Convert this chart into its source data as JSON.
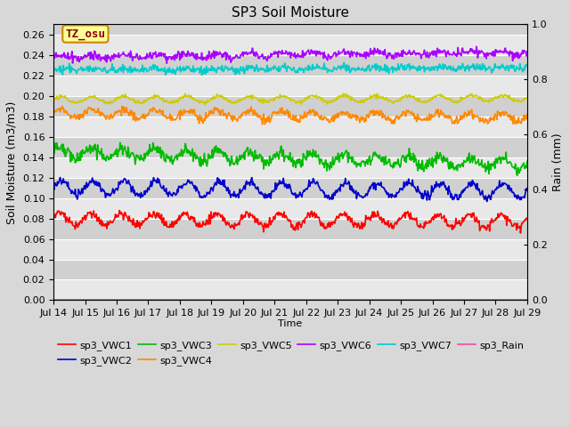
{
  "title": "SP3 Soil Moisture",
  "xlabel": "Time",
  "ylabel_left": "Soil Moisture (m3/m3)",
  "ylabel_right": "Rain (mm)",
  "ylim_left": [
    0.0,
    0.27
  ],
  "ylim_right": [
    0.0,
    1.0
  ],
  "xtick_labels": [
    "Jul 14",
    "Jul 15",
    "Jul 16",
    "Jul 17",
    "Jul 18",
    "Jul 19",
    "Jul 20",
    "Jul 21",
    "Jul 22",
    "Jul 23",
    "Jul 24",
    "Jul 25",
    "Jul 26",
    "Jul 27",
    "Jul 28",
    "Jul 29"
  ],
  "series_order": [
    "sp3_VWC1",
    "sp3_VWC2",
    "sp3_VWC3",
    "sp3_VWC4",
    "sp3_VWC5",
    "sp3_VWC6",
    "sp3_VWC7",
    "sp3_Rain"
  ],
  "legend_order": [
    "sp3_VWC1",
    "sp3_VWC2",
    "sp3_VWC3",
    "sp3_VWC4",
    "sp3_VWC5",
    "sp3_VWC6",
    "sp3_VWC7",
    "sp3_Rain"
  ],
  "series": {
    "sp3_VWC1": {
      "color": "#ff0000",
      "base": 0.079,
      "amp": 0.006,
      "noise_amp": 0.002,
      "trend": -0.0001,
      "axis": "left"
    },
    "sp3_VWC2": {
      "color": "#0000cc",
      "base": 0.11,
      "amp": 0.007,
      "noise_amp": 0.002,
      "trend": -0.0002,
      "axis": "left"
    },
    "sp3_VWC3": {
      "color": "#00bb00",
      "base": 0.145,
      "amp": 0.005,
      "noise_amp": 0.003,
      "trend": -0.0008,
      "axis": "left"
    },
    "sp3_VWC4": {
      "color": "#ff8800",
      "base": 0.183,
      "amp": 0.004,
      "noise_amp": 0.002,
      "trend": -0.0003,
      "axis": "left"
    },
    "sp3_VWC5": {
      "color": "#cccc00",
      "base": 0.196,
      "amp": 0.003,
      "noise_amp": 0.001,
      "trend": 0.0001,
      "axis": "left"
    },
    "sp3_VWC6": {
      "color": "#aa00ff",
      "base": 0.238,
      "amp": 0.002,
      "noise_amp": 0.002,
      "trend": 0.0003,
      "axis": "left"
    },
    "sp3_VWC7": {
      "color": "#00cccc",
      "base": 0.225,
      "amp": 0.001,
      "noise_amp": 0.002,
      "trend": 0.0002,
      "axis": "left"
    },
    "sp3_Rain": {
      "color": "#ff44aa",
      "base": 0.0,
      "amp": 0.0,
      "noise_amp": 0.0,
      "trend": 0.0,
      "axis": "right"
    }
  },
  "background_color": "#d8d8d8",
  "plot_bg_color": "#d8d8d8",
  "band_light": "#e8e8e8",
  "band_dark": "#d0d0d0",
  "grid_color": "#ffffff",
  "annotation_text": "TZ_osu",
  "annotation_bg": "#ffff99",
  "annotation_border": "#cc8800",
  "annotation_text_color": "#880000",
  "linewidth": 1.2
}
